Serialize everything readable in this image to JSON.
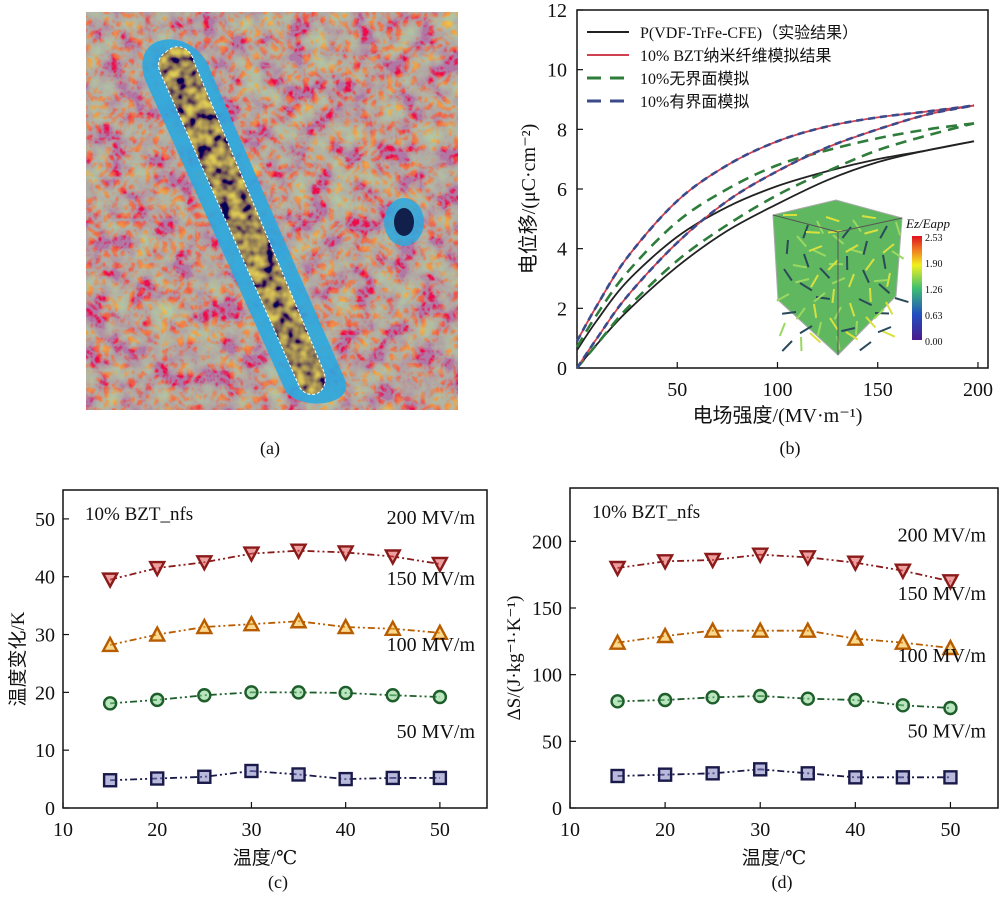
{
  "figure": {
    "captions": [
      "(a)",
      "(b)",
      "(c)",
      "(d)"
    ]
  },
  "chart_data": [
    {
      "panel": "a",
      "type": "image",
      "description": "False-color micrograph of a BZT nanofiber embedded in polymer matrix, fiber outlined with dashed white boundary",
      "caption": "(a)"
    },
    {
      "panel": "b",
      "type": "line",
      "title": "",
      "xlabel": "电场强度/(MV·m⁻¹)",
      "ylabel": "电位移/(μC·cm⁻²)",
      "xlim": [
        0,
        205
      ],
      "ylim": [
        0,
        12
      ],
      "xticks": [
        50,
        100,
        150,
        200
      ],
      "yticks": [
        0,
        2,
        4,
        6,
        8,
        10,
        12
      ],
      "legend_position": "top-left",
      "series": [
        {
          "name": "P(VDF-TrFe-CFE)（实验结果）",
          "color": "#222222",
          "dash": "solid",
          "upper": {
            "x": [
              0,
              10,
              25,
              50,
              75,
              100,
              125,
              150,
              175,
              198
            ],
            "y": [
              0.6,
              1.6,
              2.9,
              4.4,
              5.4,
              6.1,
              6.6,
              7.0,
              7.3,
              7.6
            ]
          },
          "lower": {
            "x": [
              0,
              10,
              25,
              50,
              75,
              100,
              125,
              150,
              175,
              198
            ],
            "y": [
              0,
              0.8,
              1.9,
              3.4,
              4.6,
              5.5,
              6.3,
              6.9,
              7.3,
              7.6
            ]
          }
        },
        {
          "name": "10% BZT纳米纤维模拟结果",
          "color": "#d04050",
          "dash": "solid",
          "upper": {
            "x": [
              0,
              10,
              25,
              50,
              75,
              100,
              125,
              150,
              175,
              198
            ],
            "y": [
              0.9,
              2.1,
              3.7,
              5.6,
              6.8,
              7.6,
              8.1,
              8.4,
              8.6,
              8.8
            ]
          },
          "lower": {
            "x": [
              0,
              10,
              25,
              50,
              75,
              100,
              125,
              150,
              175,
              198
            ],
            "y": [
              0,
              1.0,
              2.4,
              4.2,
              5.6,
              6.6,
              7.4,
              8.0,
              8.5,
              8.8
            ]
          }
        },
        {
          "name": "10%无界面模拟",
          "color": "#2e7d3a",
          "dash": "dashed",
          "upper": {
            "x": [
              0,
              10,
              25,
              50,
              75,
              100,
              125,
              150,
              175,
              198
            ],
            "y": [
              0.7,
              1.8,
              3.2,
              4.9,
              6.0,
              6.8,
              7.3,
              7.7,
              8.0,
              8.2
            ]
          },
          "lower": {
            "x": [
              0,
              10,
              25,
              50,
              75,
              100,
              125,
              150,
              175,
              198
            ],
            "y": [
              0,
              0.8,
              2.0,
              3.6,
              4.8,
              5.8,
              6.6,
              7.3,
              7.8,
              8.2
            ]
          }
        },
        {
          "name": "10%有界面模拟",
          "color": "#3a4a8a",
          "dash": "dashed",
          "upper": {
            "x": [
              0,
              10,
              25,
              50,
              75,
              100,
              125,
              150,
              175,
              198
            ],
            "y": [
              0.9,
              2.1,
              3.7,
              5.6,
              6.8,
              7.6,
              8.1,
              8.4,
              8.6,
              8.8
            ]
          },
          "lower": {
            "x": [
              0,
              10,
              25,
              50,
              75,
              100,
              125,
              150,
              175,
              198
            ],
            "y": [
              0,
              1.0,
              2.4,
              4.2,
              5.6,
              6.6,
              7.4,
              8.0,
              8.5,
              8.8
            ]
          }
        }
      ],
      "inset": {
        "description": "3D cube simulation of nanofiber field distribution",
        "colorbar_label": "Ez/Eapp",
        "colorbar_ticks": [
          "2.53",
          "1.90",
          "1.26",
          "0.63",
          "0.00"
        ]
      },
      "caption": "(b)"
    },
    {
      "panel": "c",
      "type": "line",
      "title": "",
      "annotation": "10%  BZT_nfs",
      "xlabel": "温度/℃",
      "ylabel": "温度变化/K",
      "xlim": [
        10,
        55
      ],
      "ylim": [
        0,
        55
      ],
      "xticks": [
        10,
        20,
        30,
        40,
        50
      ],
      "yticks": [
        0,
        10,
        20,
        30,
        40,
        50
      ],
      "x": [
        15,
        20,
        25,
        30,
        35,
        40,
        45,
        50
      ],
      "series": [
        {
          "name": "200  MV/m",
          "marker": "triangle-down",
          "color": "#8b1a1a",
          "fill": "#e05050",
          "values": [
            39.5,
            41.5,
            42.5,
            44.0,
            44.5,
            44.2,
            43.5,
            42.2
          ]
        },
        {
          "name": "150  MV/m",
          "marker": "triangle-up",
          "color": "#b85c00",
          "fill": "#f5b830",
          "values": [
            28.2,
            30.0,
            31.3,
            31.8,
            32.3,
            31.3,
            31.0,
            30.3
          ]
        },
        {
          "name": "100  MV/m",
          "marker": "circle",
          "color": "#1e5e2a",
          "fill": "#7fd08a",
          "values": [
            18.1,
            18.7,
            19.5,
            20.0,
            20.0,
            19.9,
            19.5,
            19.2
          ]
        },
        {
          "name": "50  MV/m",
          "marker": "square",
          "color": "#1a1a4a",
          "fill": "#8080c0",
          "values": [
            4.8,
            5.1,
            5.4,
            6.4,
            5.8,
            5.0,
            5.2,
            5.2
          ]
        }
      ],
      "caption": "(c)"
    },
    {
      "panel": "d",
      "type": "line",
      "title": "",
      "annotation": "10% BZT_nfs",
      "xlabel": "温度/℃",
      "ylabel": "ΔS/(J·kg⁻¹·K⁻¹)",
      "xlim": [
        10,
        55
      ],
      "ylim": [
        0,
        240
      ],
      "xticks": [
        10,
        20,
        30,
        40,
        50
      ],
      "yticks": [
        0,
        50,
        100,
        150,
        200
      ],
      "x": [
        15,
        20,
        25,
        30,
        35,
        40,
        45,
        50
      ],
      "series": [
        {
          "name": "200 MV/m",
          "marker": "triangle-down",
          "color": "#8b1a1a",
          "fill": "#e05050",
          "values": [
            180,
            185,
            186,
            190,
            188,
            184,
            178,
            170
          ]
        },
        {
          "name": "150 MV/m",
          "marker": "triangle-up",
          "color": "#b85c00",
          "fill": "#f5b830",
          "values": [
            124,
            129,
            133,
            133,
            133,
            127,
            124,
            120
          ]
        },
        {
          "name": "100 MV/m",
          "marker": "circle",
          "color": "#1e5e2a",
          "fill": "#7fd08a",
          "values": [
            80,
            81,
            83,
            84,
            82,
            81,
            77,
            75
          ]
        },
        {
          "name": "50 MV/m",
          "marker": "square",
          "color": "#1a1a4a",
          "fill": "#8080c0",
          "values": [
            24,
            25,
            26,
            29,
            26,
            23,
            23,
            23
          ]
        }
      ],
      "caption": "(d)"
    }
  ]
}
